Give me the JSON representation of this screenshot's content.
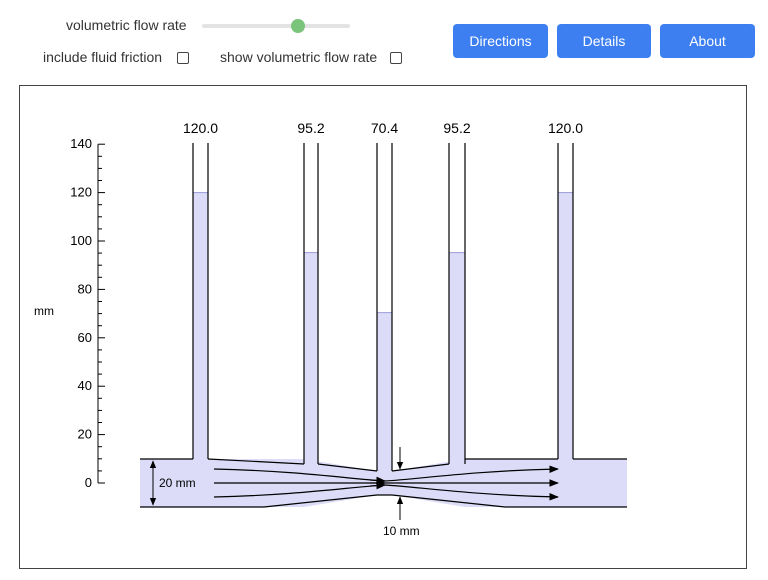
{
  "controls": {
    "flow_rate_label": "volumetric flow rate",
    "flow_rate_value": 0.65,
    "include_friction_label": "include fluid friction",
    "include_friction_checked": false,
    "show_flow_rate_label": "show volumetric flow rate",
    "show_flow_rate_checked": false
  },
  "buttons": {
    "directions": "Directions",
    "details": "Details",
    "about": "About"
  },
  "colors": {
    "accent": "#3d7ff0",
    "fluid": "#dcdcf8",
    "slider_thumb": "#7bc47b"
  },
  "diagram": {
    "y_axis_label": "mm",
    "y_ticks": [
      "0",
      "20",
      "40",
      "60",
      "80",
      "100",
      "120",
      "140"
    ],
    "tube_readings": [
      "120.0",
      "95.2",
      "70.4",
      "95.2",
      "120.0"
    ],
    "tube_levels_mm": [
      120.0,
      95.2,
      70.4,
      95.2,
      120.0
    ],
    "pipe_diameter_label": "20 mm",
    "throat_diameter_label": "10 mm",
    "y_range_mm": [
      0,
      140
    ]
  }
}
